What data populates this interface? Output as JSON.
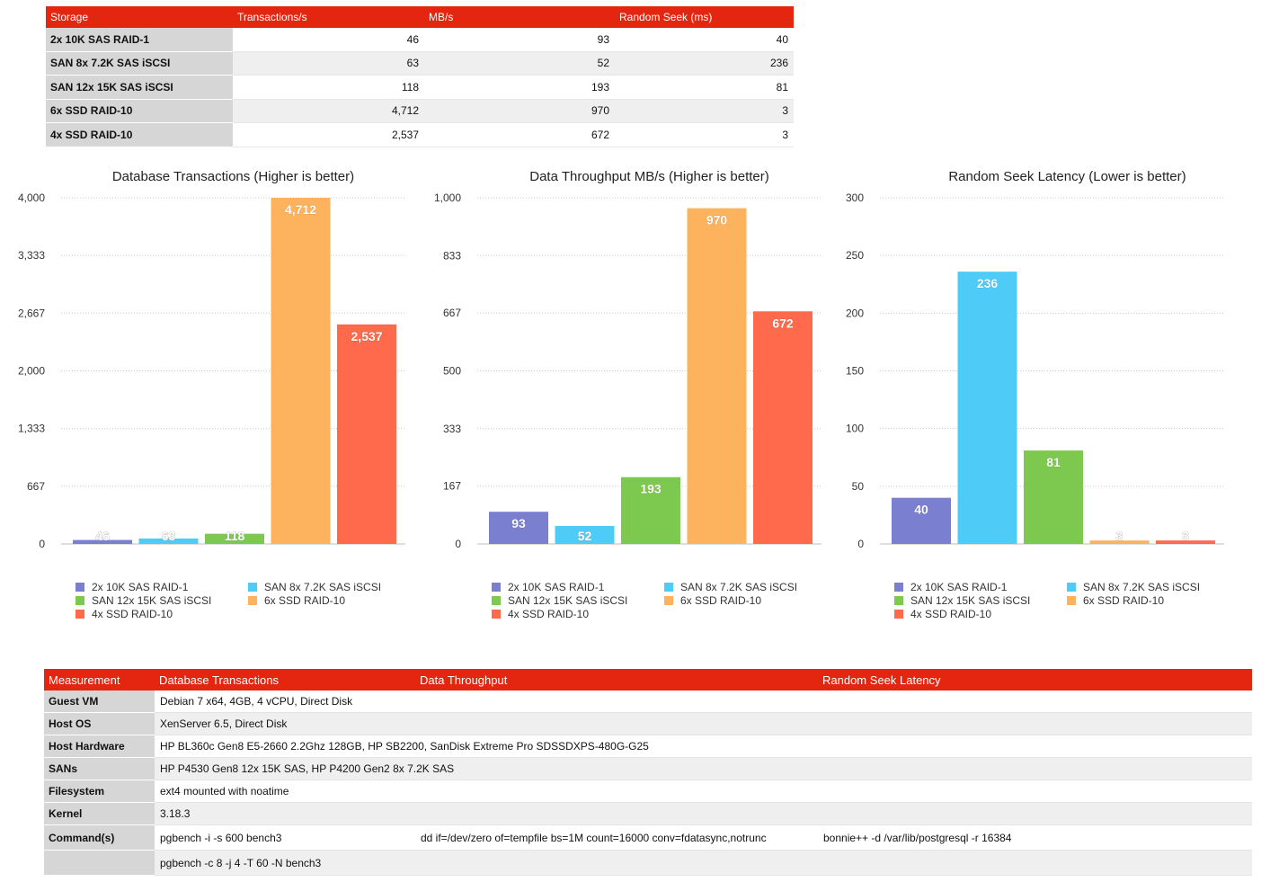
{
  "summary_table": {
    "headers": [
      "Storage",
      "Transactions/s",
      "MB/s",
      "Random Seek (ms)"
    ],
    "rows": [
      [
        "2x 10K SAS RAID-1",
        "46",
        "93",
        "40"
      ],
      [
        "SAN 8x 7.2K SAS iSCSI",
        "63",
        "52",
        "236"
      ],
      [
        "SAN 12x 15K SAS iSCSI",
        "118",
        "193",
        "81"
      ],
      [
        "6x SSD RAID-10",
        "4,712",
        "970",
        "3"
      ],
      [
        "4x SSD RAID-10",
        "2,537",
        "672",
        "3"
      ]
    ]
  },
  "colors": {
    "header": "#e42610",
    "series": [
      "#7b7fcf",
      "#4fcbf7",
      "#7dc950",
      "#fdb35d",
      "#fe6a4b"
    ]
  },
  "chart_data": [
    {
      "type": "bar",
      "title": "Database Transactions (Higher is better)",
      "categories": [
        "2x 10K SAS RAID-1",
        "SAN 8x 7.2K SAS iSCSI",
        "SAN 12x 15K SAS iSCSI",
        "6x SSD RAID-10",
        "4x SSD RAID-10"
      ],
      "values": [
        46,
        63,
        118,
        4712,
        2537
      ],
      "value_labels": [
        "46",
        "63",
        "118",
        "4,712",
        "2,537"
      ],
      "ylim": [
        0,
        4000
      ],
      "yticks": [
        0,
        667,
        1333,
        2000,
        2667,
        3333,
        4000
      ],
      "ytick_labels": [
        "0",
        "667",
        "1,333",
        "2,000",
        "2,667",
        "3,333",
        "4,000"
      ],
      "grid": true,
      "legend": "bottom"
    },
    {
      "type": "bar",
      "title": "Data Throughput MB/s (Higher is better)",
      "categories": [
        "2x 10K SAS RAID-1",
        "SAN 8x 7.2K SAS iSCSI",
        "SAN 12x 15K SAS iSCSI",
        "6x SSD RAID-10",
        "4x SSD RAID-10"
      ],
      "values": [
        93,
        52,
        193,
        970,
        672
      ],
      "value_labels": [
        "93",
        "52",
        "193",
        "970",
        "672"
      ],
      "ylim": [
        0,
        1000
      ],
      "yticks": [
        0,
        167,
        333,
        500,
        667,
        833,
        1000
      ],
      "ytick_labels": [
        "0",
        "167",
        "333",
        "500",
        "667",
        "833",
        "1,000"
      ],
      "grid": true,
      "legend": "bottom"
    },
    {
      "type": "bar",
      "title": "Random Seek Latency (Lower is better)",
      "categories": [
        "2x 10K SAS RAID-1",
        "SAN 8x 7.2K SAS iSCSI",
        "SAN 12x 15K SAS iSCSI",
        "6x SSD RAID-10",
        "4x SSD RAID-10"
      ],
      "values": [
        40,
        236,
        81,
        3,
        3
      ],
      "value_labels": [
        "40",
        "236",
        "81",
        "3",
        "3"
      ],
      "ylim": [
        0,
        300
      ],
      "yticks": [
        0,
        50,
        100,
        150,
        200,
        250,
        300
      ],
      "ytick_labels": [
        "0",
        "50",
        "100",
        "150",
        "200",
        "250",
        "300"
      ],
      "grid": true,
      "legend": "bottom"
    }
  ],
  "details_table": {
    "headers": [
      "Measurement",
      "Database Transactions",
      "Data Throughput",
      "Random Seek Latency"
    ],
    "rows": [
      {
        "label": "Guest VM",
        "cells": [
          "Debian 7 x64, 4GB, 4 vCPU, Direct Disk"
        ]
      },
      {
        "label": "Host OS",
        "cells": [
          "XenServer 6.5, Direct Disk"
        ]
      },
      {
        "label": "Host Hardware",
        "cells": [
          "HP BL360c Gen8 E5-2660 2.2Ghz 128GB, HP SB2200, SanDisk Extreme Pro SDSSDXPS-480G-G25"
        ]
      },
      {
        "label": "SANs",
        "cells": [
          "HP P4530 Gen8 12x 15K SAS, HP P4200 Gen2 8x 7.2K SAS"
        ]
      },
      {
        "label": "Filesystem",
        "cells": [
          "ext4 mounted with noatime"
        ]
      },
      {
        "label": "Kernel",
        "cells": [
          "3.18.3"
        ]
      },
      {
        "label": "Command(s)",
        "cells": [
          "pgbench -i -s 600 bench3",
          "dd if=/dev/zero of=tempfile bs=1M count=16000 conv=fdatasync,notrunc",
          "bonnie++ -d /var/lib/postgresql -r 16384"
        ]
      },
      {
        "label": "",
        "cells": [
          "pgbench -c 8 -j 4 -T 60 -N bench3",
          "",
          ""
        ]
      }
    ]
  }
}
